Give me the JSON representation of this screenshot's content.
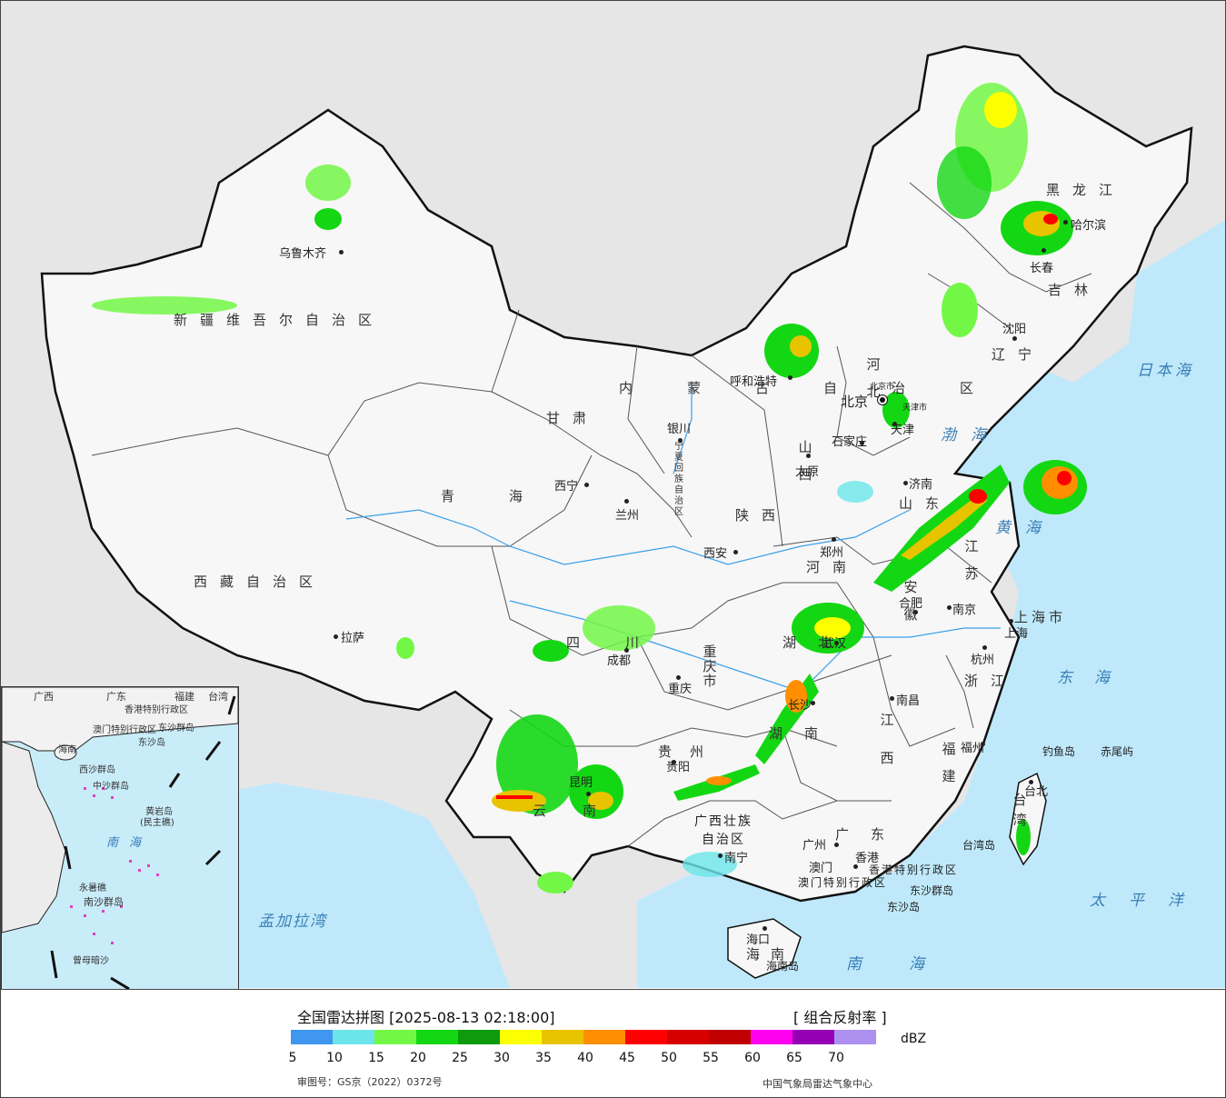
{
  "title": "全国雷达拼图 [2025-08-13 02:18:00]",
  "product": "[ 组合反射率 ]",
  "unit": "dBZ",
  "review_number": "审图号：GS京（2022）0372号",
  "source": "中国气象局雷达气象中心",
  "legend": {
    "colors": [
      "#3f97f0",
      "#6ce5ea",
      "#73f746",
      "#14d714",
      "#0d9a0d",
      "#fcff00",
      "#e8c400",
      "#ff8f00",
      "#ff0000",
      "#d70000",
      "#c00000",
      "#ff00f0",
      "#9600b4",
      "#ad90f0"
    ],
    "ticks": [
      "5",
      "10",
      "15",
      "20",
      "25",
      "30",
      "35",
      "40",
      "45",
      "50",
      "55",
      "60",
      "65",
      "70"
    ]
  },
  "provinces": {
    "xinjiang": "新疆维吾尔自治区",
    "xizang": "西藏自治区",
    "qinghai": "青海",
    "gansu": "甘肃",
    "neimenggu": "内蒙古自治区",
    "heilongjiang": "黑龙江",
    "jilin": "吉林",
    "liaoning": "辽宁",
    "hebei": "河北",
    "shanxi": "山西",
    "shaanxi": "陕西",
    "ningxia": "宁夏回族自治区",
    "shandong": "山东",
    "henan": "河南",
    "jiangsu": "江苏",
    "anhui": "安徽",
    "shanghai": "上海市",
    "zhejiang": "浙江",
    "sichuan": "四川",
    "chongqing": "重庆市",
    "hubei": "湖北",
    "hunan": "湖南",
    "jiangxi": "江西",
    "fujian": "福建",
    "guizhou": "贵州",
    "yunnan": "云南",
    "guangxi": "广西壮族自治区",
    "guangdong": "广东",
    "hainan": "海南",
    "taiwan": "台湾",
    "hongkong": "香港特别行政区",
    "macao": "澳门特别行政区",
    "beijing_city": "北京市",
    "tianjin_city": "天津市"
  },
  "cities": {
    "urumqi": "乌鲁木齐",
    "lhasa": "拉萨",
    "xining": "西宁",
    "lanzhou": "兰州",
    "yinchuan": "银川",
    "hohhot": "呼和浩特",
    "beijing": "北京",
    "tianjin": "天津",
    "shijiazhuang": "石家庄",
    "taiyuan": "太原",
    "xian": "西安",
    "zhengzhou": "郑州",
    "jinan": "济南",
    "harbin": "哈尔滨",
    "changchun": "长春",
    "shenyang": "沈阳",
    "hefei": "合肥",
    "nanjing": "南京",
    "shanghai": "上海",
    "hangzhou": "杭州",
    "nanchang": "南昌",
    "wuhan": "武汉",
    "changsha": "长沙",
    "chengdu": "成都",
    "chongqing": "重庆",
    "guiyang": "贵阳",
    "kunming": "昆明",
    "nanning": "南宁",
    "guangzhou": "广州",
    "hongkong": "香港",
    "macao": "澳门",
    "fuzhou": "福州",
    "taibei": "台北",
    "haikou": "海口"
  },
  "islands": {
    "diaoyu": "钓鱼岛",
    "chiwei": "赤尾屿",
    "dongsha_islands": "东沙群岛",
    "dongsha": "东沙岛",
    "hainan_island": "海南岛",
    "taiwan_island": "台湾岛"
  },
  "seas": {
    "japan_sea": "日本海",
    "bohai": "渤海",
    "yellow_sea": "黄海",
    "east_sea": "东海",
    "pacific": "太平洋",
    "south_sea": "南海",
    "bengal": "孟加拉湾"
  },
  "inset": {
    "guangxi": "广西",
    "guangdong": "广东",
    "fujian": "福建",
    "taiwan": "台湾",
    "hk": "香港特别行政区",
    "macao": "澳门特别行政区",
    "dongsha_islands": "东沙群岛",
    "dongsha": "东沙岛",
    "hainan": "海南",
    "xisha": "西沙群岛",
    "zhongsha": "中沙群岛",
    "huangyan": "黄岩岛",
    "minzhu": "(民主礁)",
    "nansha": "南沙群岛",
    "yongshu": "永暑礁",
    "zengmu": "曾母暗沙",
    "south_sea": "南海"
  }
}
